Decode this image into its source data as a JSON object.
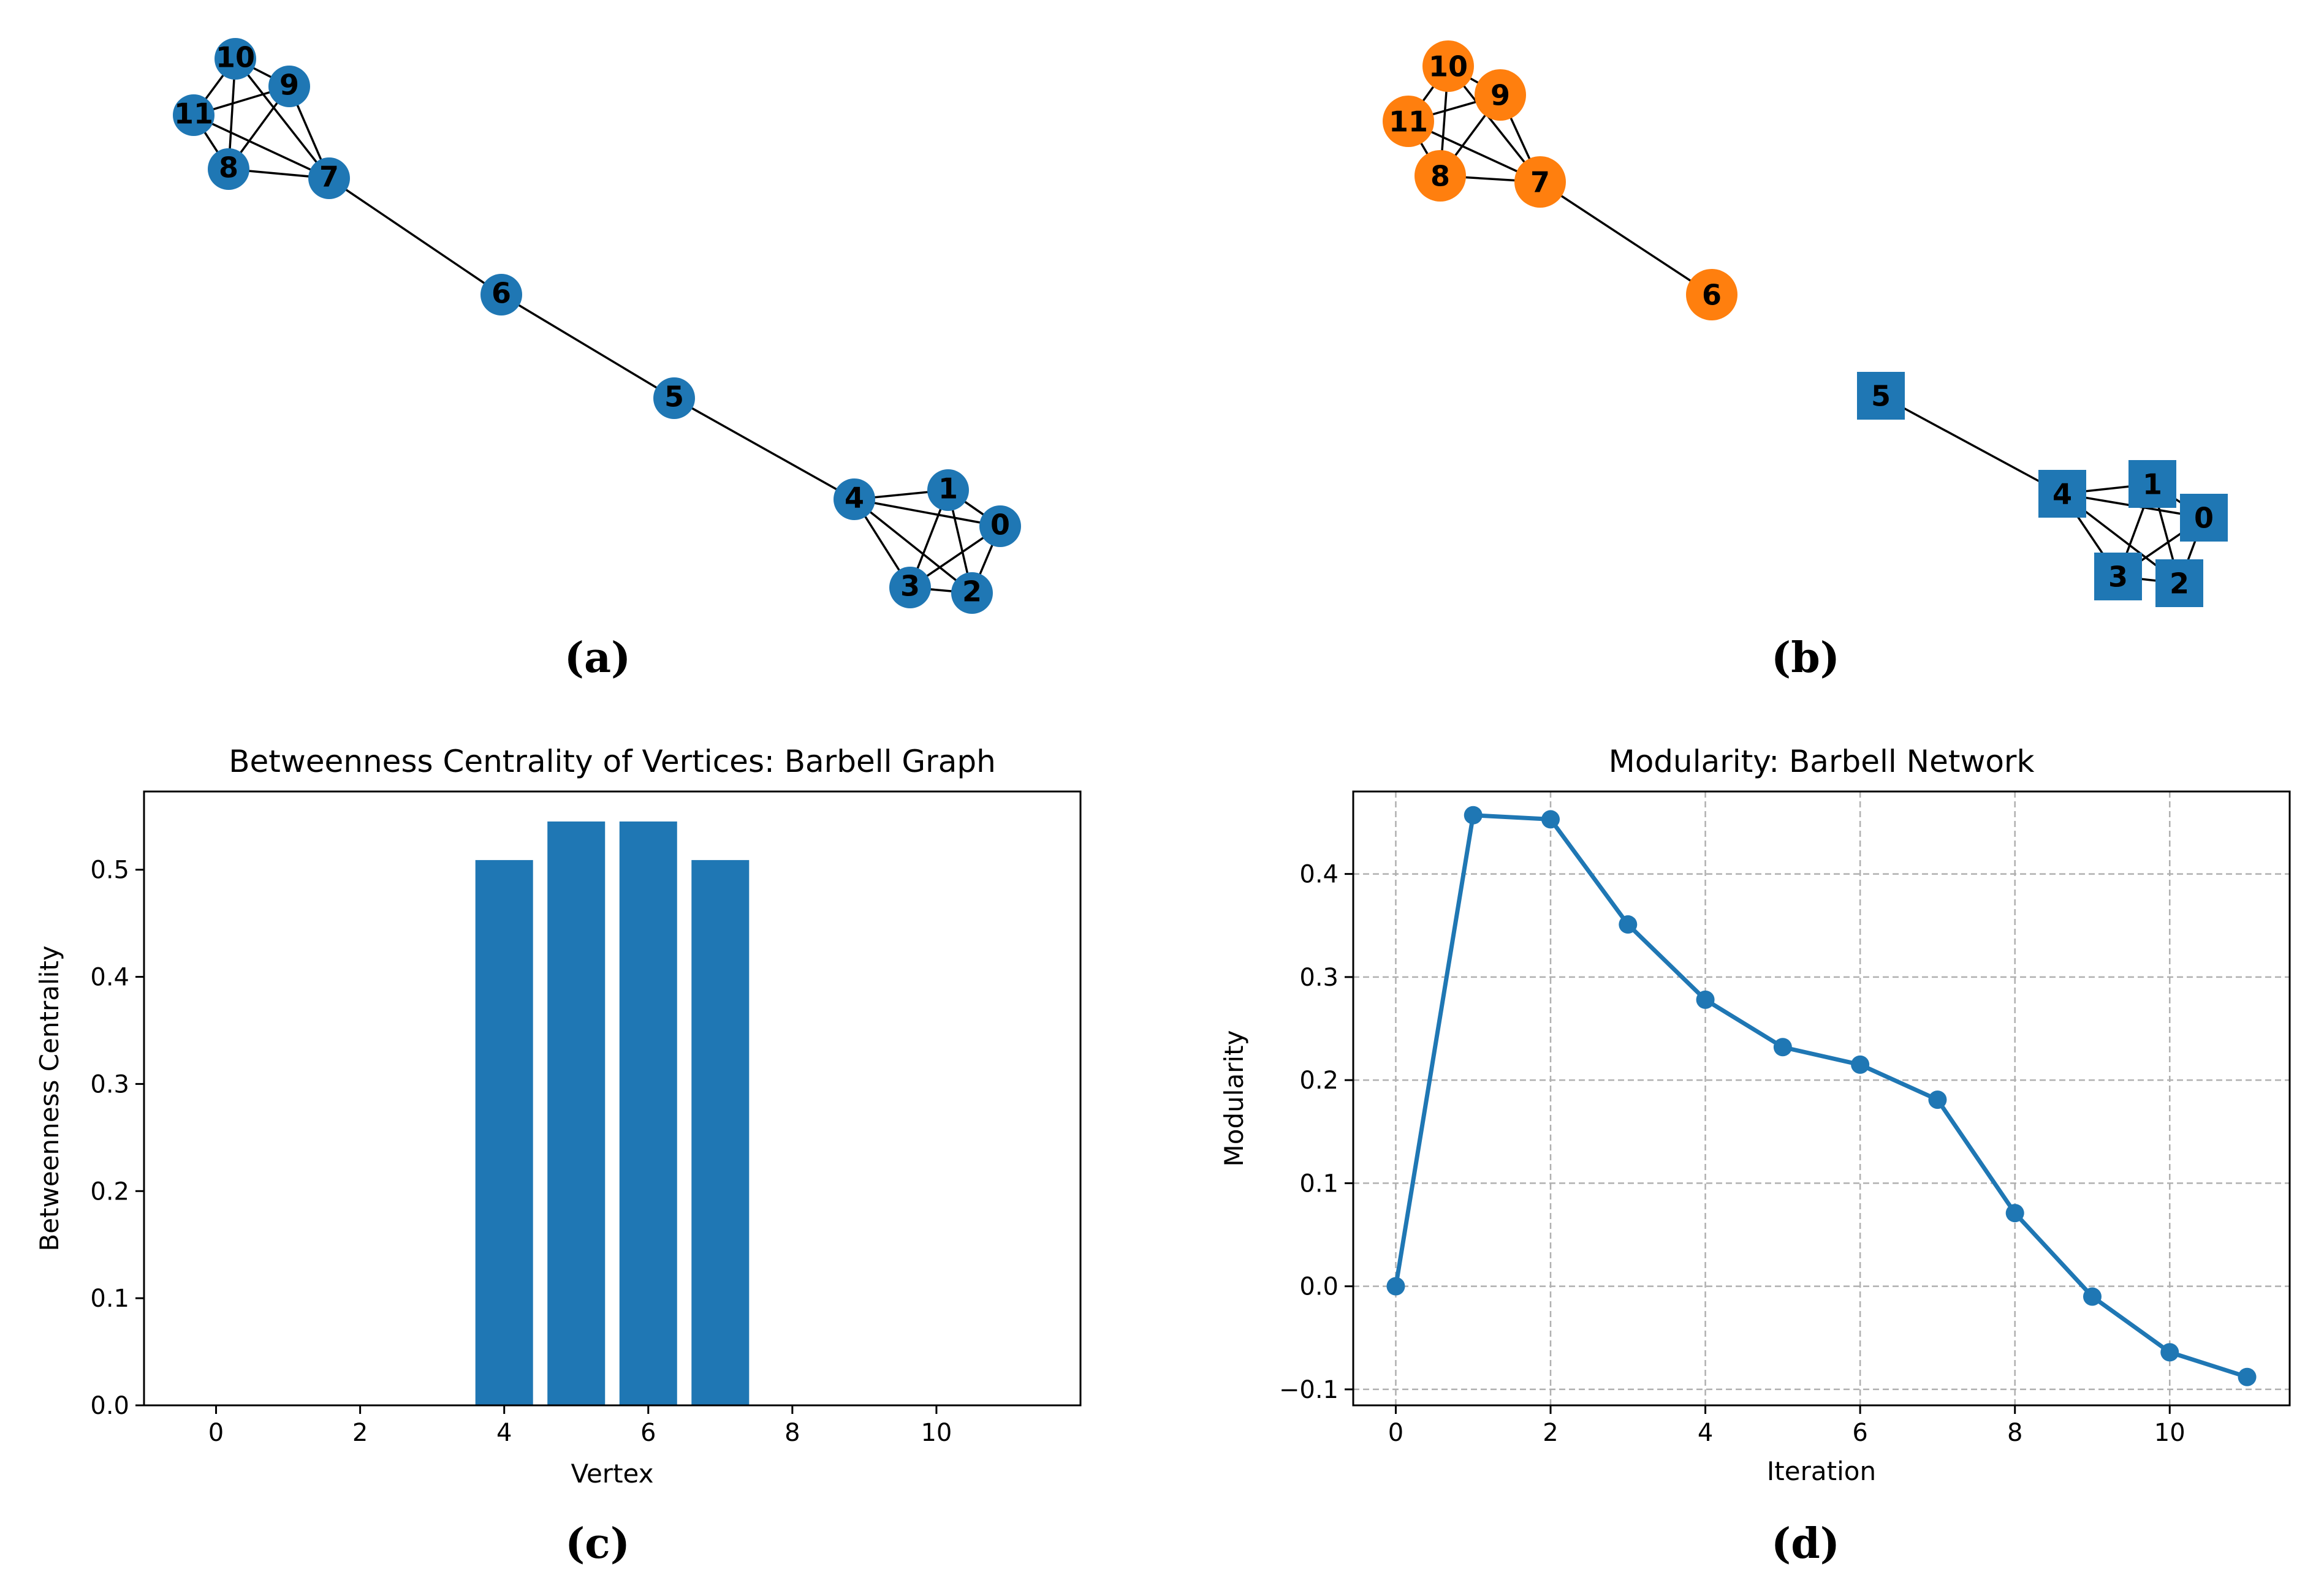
{
  "colors": {
    "blue": "#1f77b4",
    "orange": "#ff7f0e",
    "edge": "#000000",
    "grid": "#b0b0b0"
  },
  "graph_a": {
    "caption": "(a)",
    "node_shape": "circle",
    "nodes": [
      "0",
      "1",
      "2",
      "3",
      "4",
      "5",
      "6",
      "7",
      "8",
      "9",
      "10",
      "11"
    ],
    "node_colors": [
      "blue",
      "blue",
      "blue",
      "blue",
      "blue",
      "blue",
      "blue",
      "blue",
      "blue",
      "blue",
      "blue",
      "blue"
    ],
    "edges": [
      [
        0,
        1
      ],
      [
        0,
        2
      ],
      [
        0,
        3
      ],
      [
        0,
        4
      ],
      [
        1,
        2
      ],
      [
        1,
        3
      ],
      [
        1,
        4
      ],
      [
        2,
        3
      ],
      [
        2,
        4
      ],
      [
        3,
        4
      ],
      [
        4,
        5
      ],
      [
        5,
        6
      ],
      [
        6,
        7
      ],
      [
        7,
        8
      ],
      [
        7,
        9
      ],
      [
        7,
        10
      ],
      [
        7,
        11
      ],
      [
        8,
        9
      ],
      [
        8,
        10
      ],
      [
        8,
        11
      ],
      [
        9,
        10
      ],
      [
        9,
        11
      ],
      [
        10,
        11
      ]
    ]
  },
  "graph_b": {
    "caption": "(b)",
    "communities": [
      {
        "nodes": [
          "6",
          "7",
          "8",
          "9",
          "10",
          "11"
        ],
        "color": "orange",
        "shape": "circle"
      },
      {
        "nodes": [
          "0",
          "1",
          "2",
          "3",
          "4",
          "5"
        ],
        "color": "blue",
        "shape": "square"
      }
    ],
    "edges": [
      [
        0,
        1
      ],
      [
        0,
        2
      ],
      [
        0,
        3
      ],
      [
        0,
        4
      ],
      [
        1,
        2
      ],
      [
        1,
        3
      ],
      [
        1,
        4
      ],
      [
        2,
        3
      ],
      [
        2,
        4
      ],
      [
        3,
        4
      ],
      [
        4,
        5
      ],
      [
        6,
        7
      ],
      [
        7,
        8
      ],
      [
        7,
        9
      ],
      [
        7,
        10
      ],
      [
        7,
        11
      ],
      [
        8,
        9
      ],
      [
        8,
        10
      ],
      [
        8,
        11
      ],
      [
        9,
        10
      ],
      [
        9,
        11
      ],
      [
        10,
        11
      ]
    ]
  },
  "chart_data": [
    {
      "type": "bar",
      "caption": "(c)",
      "title": "Betweenness Centrality of Vertices: Barbell Graph",
      "xlabel": "Vertex",
      "ylabel": "Betweenness Centrality",
      "x": [
        0,
        1,
        2,
        3,
        4,
        5,
        6,
        7,
        8,
        9,
        10,
        11
      ],
      "values": [
        0.0,
        0.0,
        0.0,
        0.0,
        0.509,
        0.545,
        0.545,
        0.509,
        0.0,
        0.0,
        0.0,
        0.0
      ],
      "xlim": [
        -1,
        12
      ],
      "ylim": [
        0.0,
        0.573
      ],
      "xticks": [
        0,
        2,
        4,
        6,
        8,
        10
      ],
      "xtick_labels": [
        "0",
        "2",
        "4",
        "6",
        "8",
        "10"
      ],
      "yticks": [
        0.0,
        0.1,
        0.2,
        0.3,
        0.4,
        0.5
      ],
      "ytick_labels": [
        "0.0",
        "0.1",
        "0.2",
        "0.3",
        "0.4",
        "0.5"
      ],
      "grid": false,
      "color": "blue"
    },
    {
      "type": "line",
      "caption": "(d)",
      "title": "Modularity: Barbell Network",
      "xlabel": "Iteration",
      "ylabel": "Modularity",
      "x": [
        0,
        1,
        2,
        3,
        4,
        5,
        6,
        7,
        8,
        9,
        10,
        11
      ],
      "y": [
        0.0,
        0.457,
        0.453,
        0.351,
        0.278,
        0.232,
        0.215,
        0.181,
        0.071,
        -0.01,
        -0.064,
        -0.088
      ],
      "xlim": [
        -0.55,
        11.55
      ],
      "ylim": [
        -0.1155,
        0.48
      ],
      "xticks": [
        0,
        2,
        4,
        6,
        8,
        10
      ],
      "xtick_labels": [
        "0",
        "2",
        "4",
        "6",
        "8",
        "10"
      ],
      "yticks": [
        -0.1,
        0.0,
        0.1,
        0.2,
        0.3,
        0.4
      ],
      "ytick_labels": [
        "−0.1",
        "0.0",
        "0.1",
        "0.2",
        "0.3",
        "0.4"
      ],
      "grid": true,
      "color": "blue",
      "marker": "circle"
    }
  ]
}
